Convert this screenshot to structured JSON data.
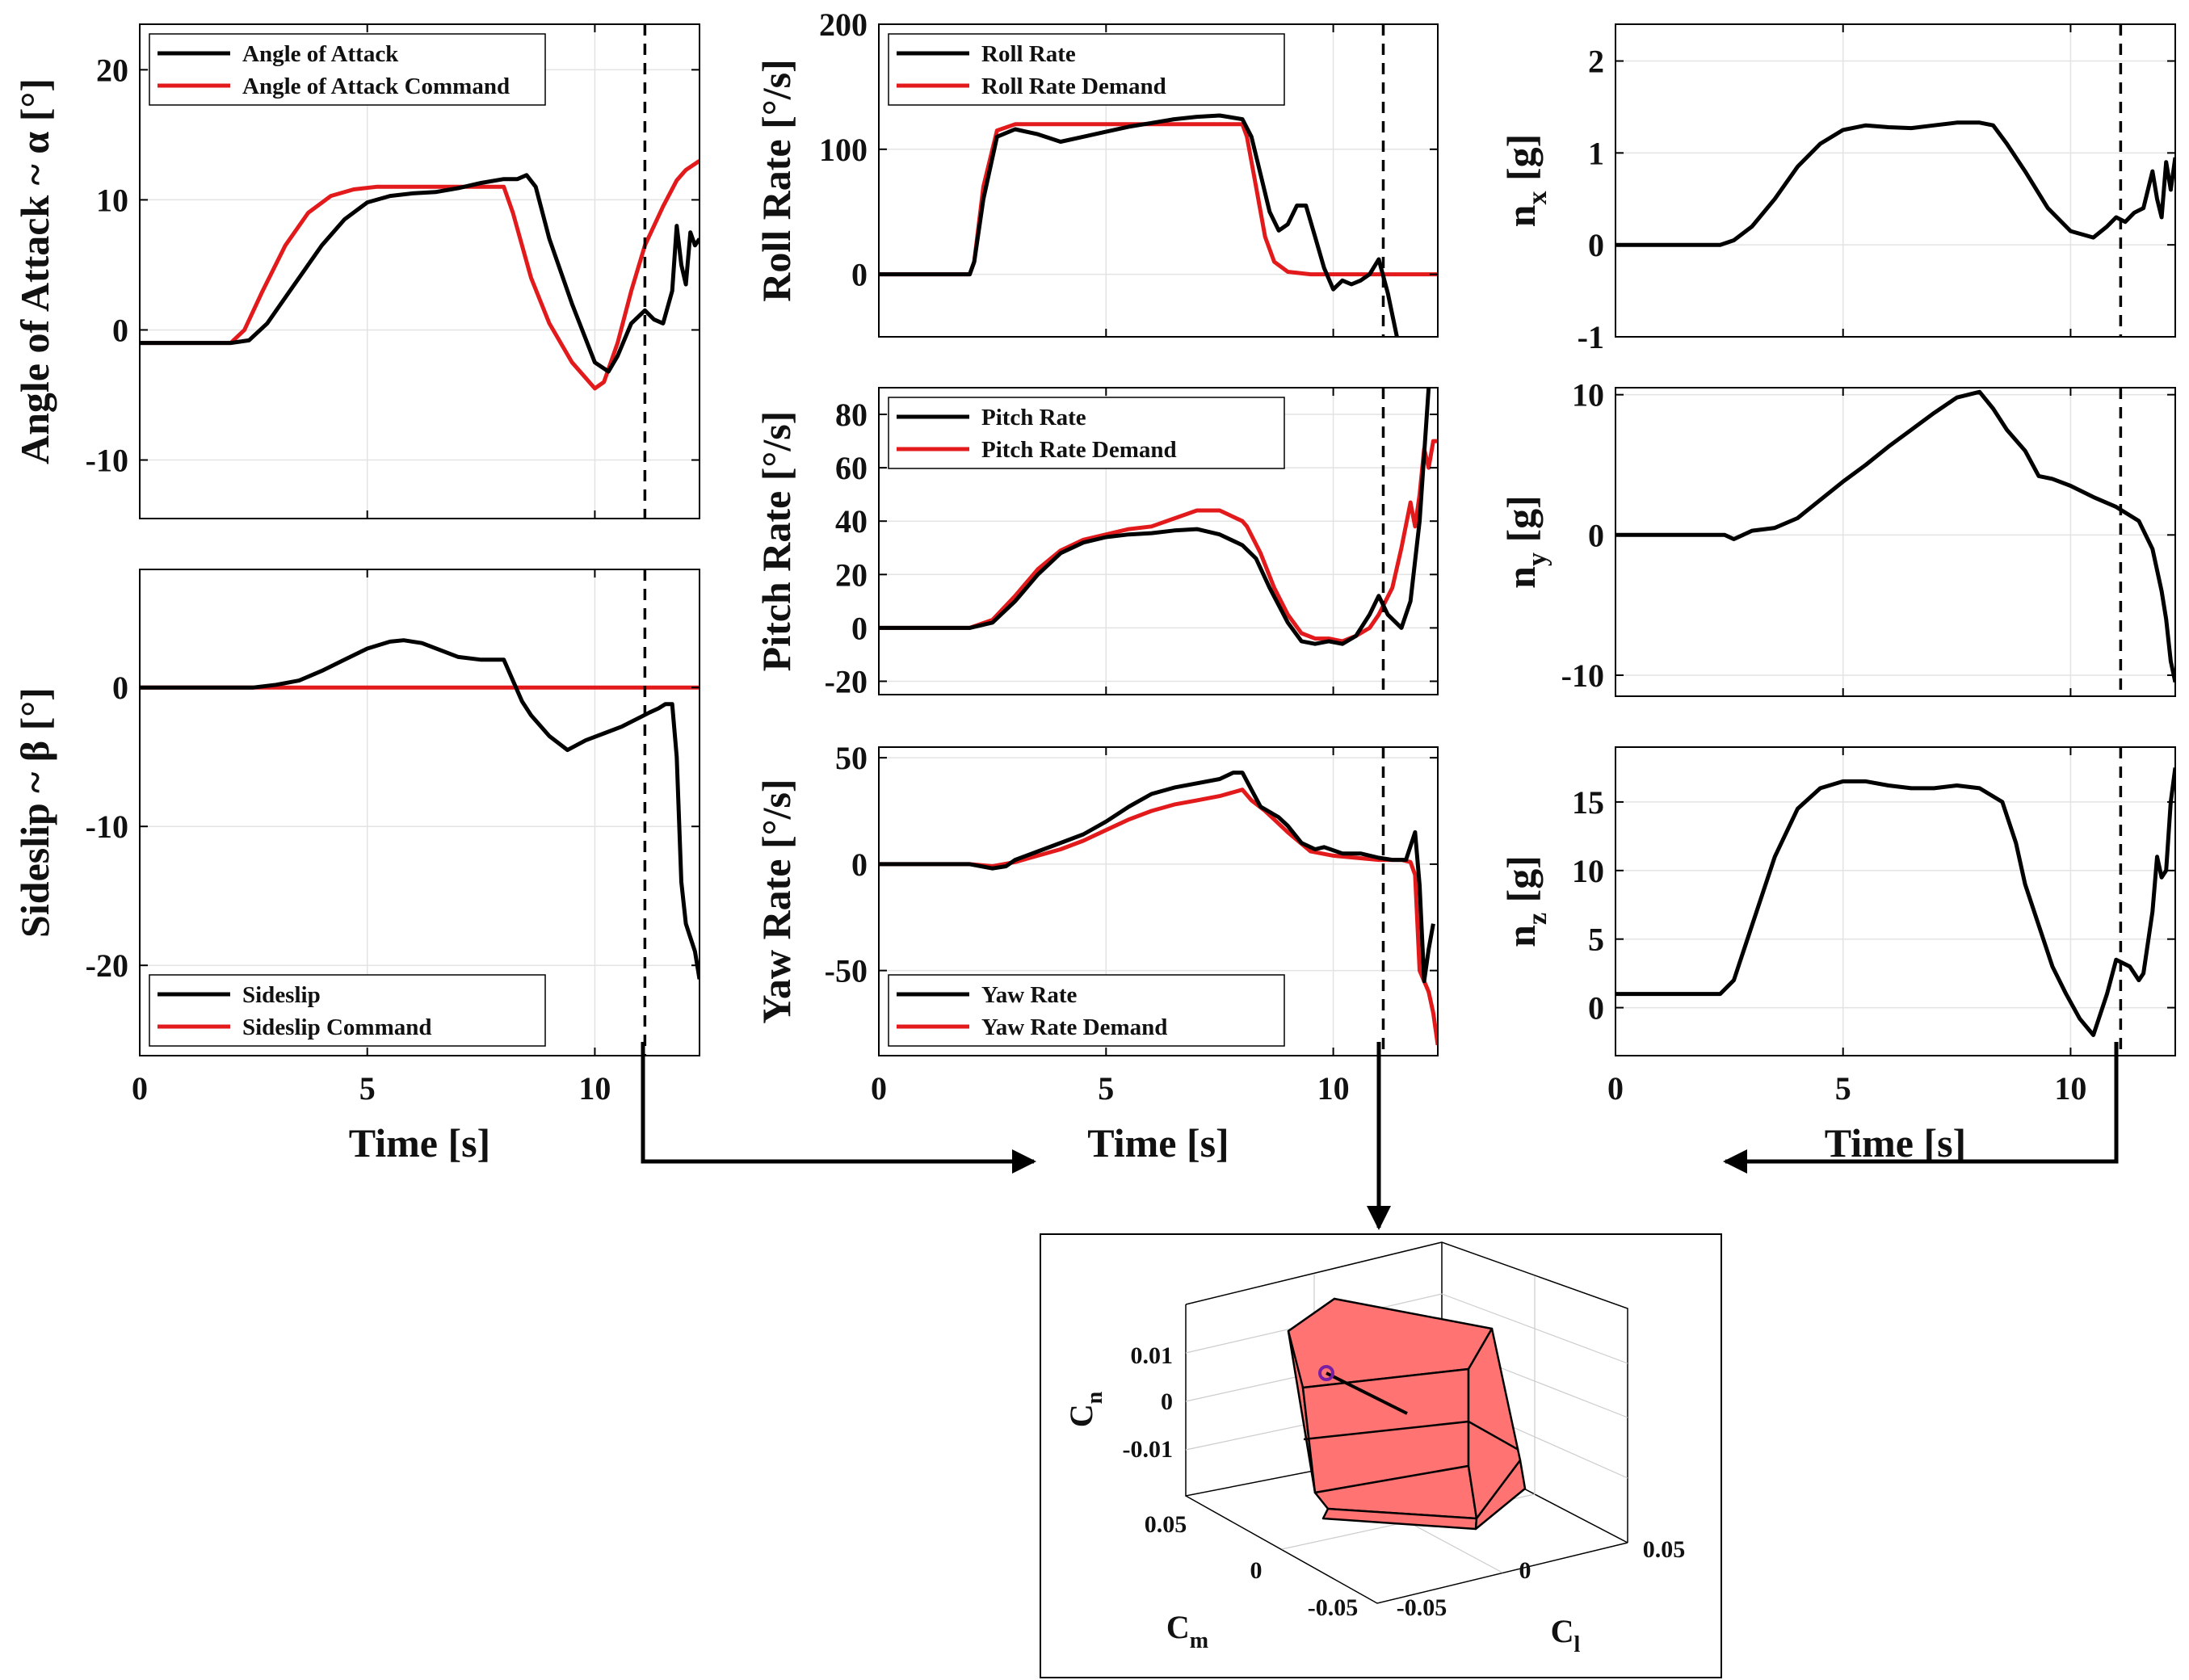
{
  "figure_title": "",
  "chart_data": [
    {
      "id": "aoa",
      "type": "line",
      "title": "",
      "xlabel": "",
      "ylabel": "Angle of Attack ~ α [°]",
      "xlim": [
        0,
        12.3
      ],
      "ylim": [
        -14.5,
        23.5
      ],
      "xticks": [],
      "yticks": [
        -10,
        0,
        10,
        20
      ],
      "legend_position": "top-left",
      "series": [
        {
          "name": "Angle of Attack",
          "color": "#000000",
          "x": [
            0,
            2,
            2.4,
            2.8,
            3.3,
            4,
            4.5,
            5,
            5.5,
            6,
            6.5,
            7,
            7.5,
            8,
            8.3,
            8.5,
            8.7,
            9,
            9.5,
            10,
            10.3,
            10.5,
            10.8,
            11.1,
            11.3,
            11.5,
            11.7,
            11.8,
            11.9,
            12.0,
            12.1,
            12.2,
            12.3
          ],
          "y": [
            -1,
            -1,
            -0.8,
            0.5,
            3,
            6.5,
            8.5,
            9.8,
            10.3,
            10.5,
            10.6,
            10.9,
            11.3,
            11.6,
            11.6,
            11.9,
            11,
            7,
            2,
            -2.5,
            -3.2,
            -2,
            0.5,
            1.5,
            0.8,
            0.5,
            3,
            8,
            5,
            3.5,
            7.5,
            6.5,
            7
          ]
        },
        {
          "name": "Angle of Attack Command",
          "color": "#e31a1c",
          "x": [
            0,
            2,
            2.3,
            2.7,
            3.2,
            3.7,
            4.2,
            4.7,
            5.2,
            6,
            7,
            7.5,
            8,
            8.2,
            8.6,
            9,
            9.5,
            10,
            10.2,
            10.5,
            10.8,
            11.1,
            11.5,
            11.8,
            12.0,
            12.3
          ],
          "y": [
            -1,
            -1,
            0,
            3,
            6.5,
            9,
            10.3,
            10.8,
            11,
            11,
            11,
            11,
            11,
            9,
            4,
            0.5,
            -2.5,
            -4.5,
            -4,
            -1,
            3,
            6.5,
            9.5,
            11.5,
            12.3,
            13
          ]
        }
      ]
    },
    {
      "id": "sideslip",
      "type": "line",
      "title": "",
      "xlabel": "Time [s]",
      "ylabel": "Sideslip ~ β [°]",
      "xlim": [
        0,
        12.3
      ],
      "ylim": [
        -26.5,
        8.5
      ],
      "xticks": [
        0,
        5,
        10
      ],
      "yticks": [
        -20,
        -10,
        0
      ],
      "legend_position": "bottom-left",
      "series": [
        {
          "name": "Sideslip",
          "color": "#000000",
          "x": [
            0,
            2,
            2.5,
            3,
            3.5,
            4,
            4.5,
            5,
            5.5,
            5.8,
            6.2,
            6.6,
            7,
            7.5,
            8,
            8.2,
            8.4,
            8.6,
            9,
            9.4,
            9.8,
            10.2,
            10.6,
            10.9,
            11.2,
            11.4,
            11.55,
            11.7,
            11.8,
            11.9,
            12.0,
            12.1,
            12.2,
            12.3
          ],
          "y": [
            0,
            0,
            0,
            0.2,
            0.5,
            1.2,
            2,
            2.8,
            3.3,
            3.4,
            3.2,
            2.7,
            2.2,
            2,
            2,
            0.5,
            -1,
            -2,
            -3.5,
            -4.5,
            -3.8,
            -3.3,
            -2.8,
            -2.3,
            -1.8,
            -1.5,
            -1.2,
            -1.2,
            -5,
            -14,
            -17,
            -18,
            -19,
            -21
          ]
        },
        {
          "name": "Sideslip Command",
          "color": "#e31a1c",
          "x": [
            0,
            12.3
          ],
          "y": [
            0,
            0
          ]
        }
      ]
    },
    {
      "id": "roll",
      "type": "line",
      "title": "",
      "xlabel": "",
      "ylabel": "Roll Rate [°/s]",
      "xlim": [
        0,
        12.3
      ],
      "ylim": [
        -50,
        200
      ],
      "xticks": [],
      "yticks": [
        0,
        100,
        200
      ],
      "legend_position": "top-left",
      "series": [
        {
          "name": "Roll Rate",
          "color": "#000000",
          "x": [
            0,
            2,
            2.1,
            2.3,
            2.6,
            3,
            3.5,
            4,
            4.5,
            5,
            5.5,
            6,
            6.5,
            7,
            7.5,
            8,
            8.2,
            8.4,
            8.6,
            8.8,
            9,
            9.2,
            9.4,
            9.6,
            9.8,
            10,
            10.2,
            10.4,
            10.6,
            10.8,
            11,
            11.2,
            11.4
          ],
          "y": [
            0,
            0,
            10,
            60,
            110,
            116,
            112,
            106,
            110,
            114,
            118,
            121,
            124,
            126,
            127,
            124,
            110,
            80,
            50,
            35,
            40,
            55,
            55,
            30,
            5,
            -12,
            -5,
            -8,
            -5,
            0,
            12,
            -15,
            -50
          ]
        },
        {
          "name": "Roll Rate Demand",
          "color": "#e31a1c",
          "x": [
            0,
            2,
            2.1,
            2.3,
            2.6,
            3,
            8,
            8.1,
            8.3,
            8.5,
            8.7,
            9,
            9.5,
            12.3
          ],
          "y": [
            0,
            0,
            10,
            70,
            115,
            120,
            120,
            110,
            70,
            30,
            10,
            2,
            0,
            0
          ]
        }
      ]
    },
    {
      "id": "pitch",
      "type": "line",
      "title": "",
      "xlabel": "",
      "ylabel": "Pitch Rate [°/s]",
      "xlim": [
        0,
        12.3
      ],
      "ylim": [
        -25,
        90
      ],
      "xticks": [],
      "yticks": [
        -20,
        0,
        20,
        40,
        60,
        80
      ],
      "legend_position": "top-left",
      "series": [
        {
          "name": "Pitch Rate",
          "color": "#000000",
          "x": [
            0,
            2,
            2.5,
            3,
            3.5,
            4,
            4.5,
            5,
            5.5,
            6,
            6.5,
            7,
            7.5,
            8,
            8.3,
            8.6,
            9,
            9.3,
            9.6,
            9.9,
            10.2,
            10.5,
            10.8,
            11,
            11.2,
            11.5,
            11.7,
            11.9,
            12.1
          ],
          "y": [
            0,
            0,
            2,
            10,
            20,
            28,
            32,
            34,
            35,
            35.5,
            36.5,
            37,
            35,
            31,
            26,
            15,
            2,
            -5,
            -6,
            -5,
            -6,
            -3,
            5,
            12,
            5,
            0,
            10,
            40,
            90
          ]
        },
        {
          "name": "Pitch Rate Demand",
          "color": "#e31a1c",
          "x": [
            0,
            2,
            2.5,
            3,
            3.5,
            4,
            4.5,
            5,
            5.5,
            6,
            6.5,
            7,
            7.5,
            8,
            8.1,
            8.4,
            8.7,
            9,
            9.3,
            9.6,
            9.9,
            10.2,
            10.5,
            10.8,
            11,
            11.3,
            11.5,
            11.7,
            11.8,
            11.9,
            12.0,
            12.1,
            12.2,
            12.3
          ],
          "y": [
            0,
            0,
            3,
            12,
            22,
            29,
            33,
            35,
            37,
            38,
            41,
            44,
            44,
            40,
            38,
            28,
            15,
            5,
            -2,
            -4,
            -4,
            -5,
            -3,
            0,
            5,
            15,
            30,
            47,
            38,
            50,
            67,
            60,
            70,
            70
          ]
        }
      ]
    },
    {
      "id": "yaw",
      "type": "line",
      "title": "",
      "xlabel": "Time [s]",
      "ylabel": "Yaw Rate [°/s]",
      "xlim": [
        0,
        12.3
      ],
      "ylim": [
        -90,
        55
      ],
      "xticks": [
        0,
        5,
        10
      ],
      "yticks": [
        -50,
        0,
        50
      ],
      "legend_position": "bottom-left",
      "series": [
        {
          "name": "Yaw Rate",
          "color": "#000000",
          "x": [
            0,
            2,
            2.5,
            2.8,
            3,
            3.5,
            4,
            4.5,
            5,
            5.5,
            6,
            6.5,
            7,
            7.5,
            7.8,
            8,
            8.2,
            8.4,
            8.8,
            9,
            9.3,
            9.6,
            9.8,
            10.2,
            10.6,
            11,
            11.3,
            11.6,
            11.8,
            11.9,
            12.0,
            12.1,
            12.2
          ],
          "y": [
            0,
            0,
            -2,
            -1,
            2,
            6,
            10,
            14,
            20,
            27,
            33,
            36,
            38,
            40,
            43,
            43,
            35,
            27,
            22,
            18,
            10,
            7,
            8,
            5,
            5,
            3,
            2,
            2,
            15,
            -10,
            -55,
            -40,
            -28
          ]
        },
        {
          "name": "Yaw Rate Demand",
          "color": "#e31a1c",
          "x": [
            0,
            2,
            2.5,
            3,
            3.5,
            4,
            4.5,
            5,
            5.5,
            6,
            6.5,
            7,
            7.5,
            8,
            8.2,
            8.5,
            9,
            9.5,
            10,
            10.5,
            11,
            11.5,
            11.7,
            11.8,
            11.9,
            12.0,
            12.1,
            12.2,
            12.3
          ],
          "y": [
            0,
            0,
            -1,
            1,
            4,
            7,
            11,
            16,
            21,
            25,
            28,
            30,
            32,
            35,
            30,
            25,
            15,
            6,
            4,
            3,
            2,
            2,
            1,
            -5,
            -50,
            -55,
            -60,
            -70,
            -85
          ]
        }
      ]
    },
    {
      "id": "nx",
      "type": "line",
      "title": "",
      "xlabel": "",
      "ylabel": "n_x [g]",
      "xlim": [
        0,
        12.3
      ],
      "ylim": [
        -1,
        2.4
      ],
      "xticks": [],
      "yticks": [
        -1,
        0,
        1,
        2
      ],
      "legend_position": "none",
      "series": [
        {
          "name": "n_x",
          "color": "#000000",
          "x": [
            0,
            2.3,
            2.6,
            3,
            3.5,
            4,
            4.5,
            5,
            5.5,
            6,
            6.5,
            7,
            7.5,
            8,
            8.3,
            8.6,
            9,
            9.5,
            10,
            10.5,
            10.8,
            11,
            11.2,
            11.4,
            11.6,
            11.8,
            11.9,
            12.0,
            12.1,
            12.2,
            12.3
          ],
          "y": [
            0,
            0,
            0.05,
            0.2,
            0.5,
            0.85,
            1.1,
            1.25,
            1.3,
            1.28,
            1.27,
            1.3,
            1.33,
            1.33,
            1.3,
            1.1,
            0.8,
            0.4,
            0.15,
            0.08,
            0.2,
            0.3,
            0.25,
            0.35,
            0.4,
            0.8,
            0.5,
            0.3,
            0.9,
            0.6,
            0.95
          ]
        }
      ]
    },
    {
      "id": "ny",
      "type": "line",
      "title": "",
      "xlabel": "",
      "ylabel": "n_y [g]",
      "xlim": [
        0,
        12.3
      ],
      "ylim": [
        -11.5,
        10.5
      ],
      "xticks": [],
      "yticks": [
        -10,
        0,
        10
      ],
      "legend_position": "none",
      "series": [
        {
          "name": "n_y",
          "color": "#000000",
          "x": [
            0,
            2.4,
            2.6,
            2.8,
            3,
            3.5,
            4,
            4.5,
            5,
            5.5,
            6,
            6.5,
            7,
            7.5,
            8,
            8.3,
            8.6,
            9,
            9.3,
            9.6,
            10,
            10.5,
            11,
            11.5,
            11.8,
            12.0,
            12.1,
            12.2,
            12.3
          ],
          "y": [
            0,
            0,
            -0.3,
            0,
            0.3,
            0.5,
            1.2,
            2.5,
            3.8,
            5,
            6.3,
            7.5,
            8.7,
            9.8,
            10.2,
            9,
            7.5,
            6,
            4.2,
            4,
            3.5,
            2.7,
            2,
            1,
            -1,
            -4,
            -6,
            -9,
            -10.5
          ]
        }
      ]
    },
    {
      "id": "nz",
      "type": "line",
      "title": "",
      "xlabel": "Time [s]",
      "ylabel": "n_z [g]",
      "xlim": [
        0,
        12.3
      ],
      "ylim": [
        -3.5,
        19
      ],
      "xticks": [
        0,
        5,
        10
      ],
      "yticks": [
        0,
        5,
        10,
        15
      ],
      "legend_position": "none",
      "series": [
        {
          "name": "n_z",
          "color": "#000000",
          "x": [
            0,
            2.3,
            2.6,
            3,
            3.5,
            4,
            4.5,
            5,
            5.5,
            6,
            6.5,
            7,
            7.5,
            8,
            8.5,
            8.8,
            9,
            9.3,
            9.6,
            9.9,
            10.2,
            10.5,
            10.8,
            11,
            11.3,
            11.5,
            11.6,
            11.8,
            11.9,
            12.0,
            12.1,
            12.2,
            12.3
          ],
          "y": [
            1,
            1,
            2,
            6,
            11,
            14.5,
            16,
            16.5,
            16.5,
            16.2,
            16,
            16,
            16.2,
            16,
            15,
            12,
            9,
            6,
            3,
            1,
            -0.8,
            -2,
            1,
            3.5,
            3,
            2,
            2.5,
            7,
            11,
            9.5,
            10,
            15,
            17.5
          ]
        }
      ]
    },
    {
      "id": "moment3d",
      "type": "scatter",
      "title": "",
      "xlabel": "C_m",
      "ylabel": "C_l",
      "zlabel": "C_n",
      "xlim": [
        -0.05,
        0.05
      ],
      "ylim": [
        -0.05,
        0.05
      ],
      "zlim": [
        -0.02,
        0.02
      ],
      "xticks": [
        -0.05,
        0,
        0.05
      ],
      "yticks": [
        -0.05,
        0,
        0.05
      ],
      "zticks": [
        -0.01,
        0,
        0.01
      ],
      "series": [
        {
          "name": "attainable moment set",
          "color": "#ff6f6f"
        },
        {
          "name": "moment demand",
          "color": "#7a1fa2"
        }
      ]
    }
  ],
  "marker_time": 11.1
}
